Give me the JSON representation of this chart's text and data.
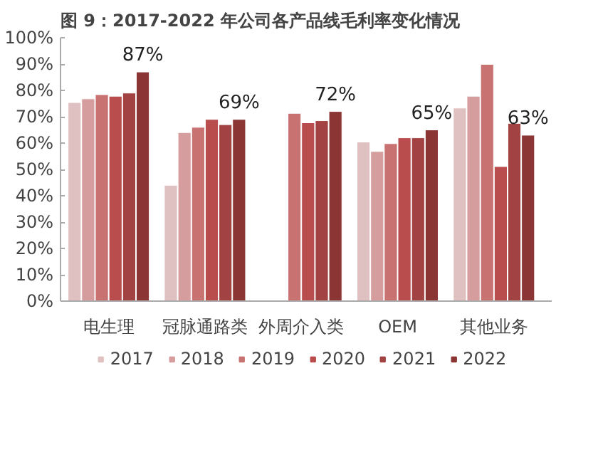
{
  "chart_data": {
    "type": "bar",
    "title": "图 9：2017-2022 年公司各产品线毛利率变化情况",
    "categories": [
      "电生理",
      "冠脉通路类",
      "外周介入类",
      "OEM",
      "其他业务"
    ],
    "series": [
      {
        "name": "2017",
        "color": "#e0c1c1",
        "values": [
          75.4,
          44,
          null,
          60.4,
          73.3
        ]
      },
      {
        "name": "2018",
        "color": "#d59d9d",
        "values": [
          76.8,
          64,
          null,
          56.8,
          77.8
        ]
      },
      {
        "name": "2019",
        "color": "#c87272",
        "values": [
          78.4,
          66,
          71.3,
          59.8,
          89.9
        ]
      },
      {
        "name": "2020",
        "color": "#b94c4c",
        "values": [
          77.8,
          69,
          67.7,
          62,
          51.1
        ]
      },
      {
        "name": "2021",
        "color": "#a34242",
        "values": [
          79,
          67,
          68.5,
          62,
          67.5
        ]
      },
      {
        "name": "2022",
        "color": "#8b3535",
        "values": [
          87,
          69,
          72,
          65,
          63
        ],
        "value_labels": [
          "87%",
          "69%",
          "72%",
          "65%",
          "63%"
        ]
      }
    ],
    "ylim": [
      0,
      100
    ],
    "yticks": [
      {
        "value": 0,
        "label": "0%"
      },
      {
        "value": 10,
        "label": "10%"
      },
      {
        "value": 20,
        "label": "20%"
      },
      {
        "value": 30,
        "label": "30%"
      },
      {
        "value": 40,
        "label": "40%"
      },
      {
        "value": 50,
        "label": "50%"
      },
      {
        "value": 60,
        "label": "60%"
      },
      {
        "value": 70,
        "label": "70%"
      },
      {
        "value": 80,
        "label": "80%"
      },
      {
        "value": 90,
        "label": "90%"
      },
      {
        "value": 100,
        "label": "100%"
      }
    ],
    "grid": false,
    "legend": "bottom"
  }
}
